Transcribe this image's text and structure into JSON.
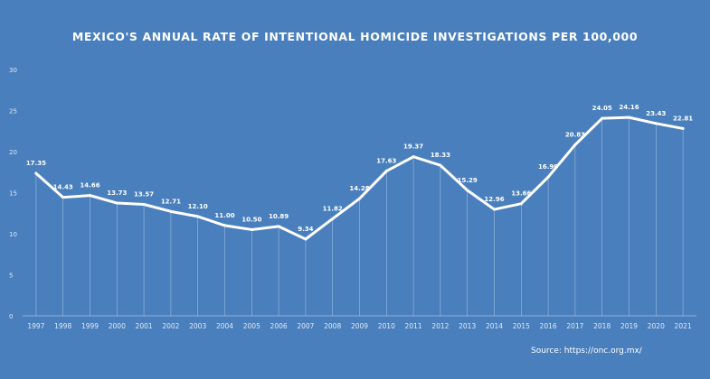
{
  "chart_data": {
    "type": "line",
    "title": "MEXICO'S ANNUAL RATE OF INTENTIONAL HOMICIDE INVESTIGATIONS PER 100,000",
    "xlabel": "",
    "ylabel": "",
    "ylim": [
      0,
      30
    ],
    "yticks": [
      "0",
      "5",
      "10",
      "15",
      "20",
      "25",
      "30"
    ],
    "categories": [
      "1997",
      "1998",
      "1999",
      "2000",
      "2001",
      "2002",
      "2003",
      "2004",
      "2005",
      "2006",
      "2007",
      "2008",
      "2009",
      "2010",
      "2011",
      "2012",
      "2013",
      "2014",
      "2015",
      "2016",
      "2017",
      "2018",
      "2019",
      "2020",
      "2021"
    ],
    "values": [
      17.35,
      14.43,
      14.66,
      13.73,
      13.57,
      12.71,
      12.1,
      11.0,
      10.5,
      10.89,
      9.34,
      11.82,
      14.28,
      17.63,
      19.37,
      18.33,
      15.29,
      12.96,
      13.66,
      16.9,
      20.83,
      24.05,
      24.16,
      23.43,
      22.81
    ],
    "data_labels": [
      "17.35",
      "14.43",
      "14.66",
      "13.73",
      "13.57",
      "12.71",
      "12.10",
      "11.00",
      "10.50",
      "10.89",
      "9.34",
      "11.82",
      "14.28",
      "17.63",
      "19.37",
      "18.33",
      "15.29",
      "12.96",
      "13.66",
      "16.90",
      "20.83",
      "24.05",
      "24.16",
      "23.43",
      "22.81"
    ],
    "grid": false,
    "legend": "none",
    "colors": {
      "background": "#4a7fbd",
      "line": "#ffffff",
      "text": "#ffffff"
    }
  },
  "source": "Source: https://onc.org.mx/"
}
